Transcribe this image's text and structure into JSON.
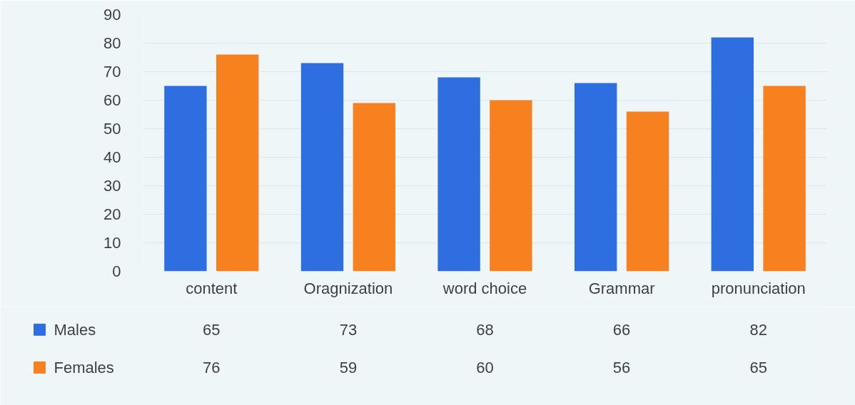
{
  "chart_data": {
    "type": "bar",
    "categories": [
      "content",
      "Oragnization",
      "word choice",
      "Grammar",
      "pronunciation"
    ],
    "series": [
      {
        "name": "Males",
        "color": "#2f6ee0",
        "values": [
          65,
          73,
          68,
          66,
          82
        ]
      },
      {
        "name": "Females",
        "color": "#f7801f",
        "values": [
          76,
          59,
          60,
          56,
          65
        ]
      }
    ],
    "ylim": [
      0,
      90
    ],
    "yticks": [
      0,
      10,
      20,
      30,
      40,
      50,
      60,
      70,
      80,
      90
    ],
    "grid": "y",
    "legend": "bottom",
    "data_labels": true
  }
}
